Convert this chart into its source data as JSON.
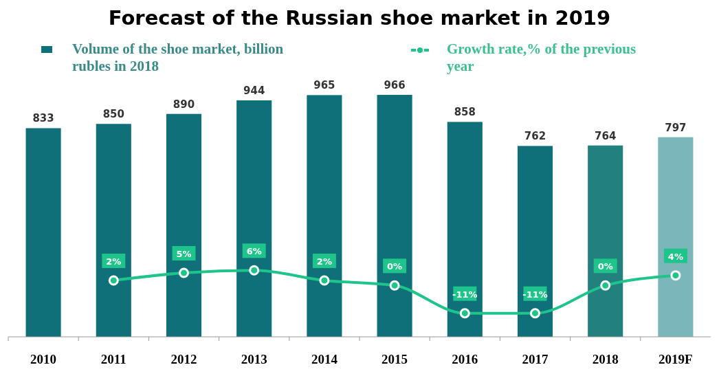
{
  "chart_data": {
    "type": "bar",
    "title": "Forecast of the Russian shoe market in 2019",
    "categories": [
      "2010",
      "2011",
      "2012",
      "2013",
      "2014",
      "2015",
      "2016",
      "2017",
      "2018",
      "2019F"
    ],
    "series": [
      {
        "name": "Volume of the shoe market, billion rubles in 2018",
        "color": "#107079",
        "colors": [
          "#107079",
          "#107079",
          "#107079",
          "#107079",
          "#107079",
          "#107079",
          "#107079",
          "#107079",
          "#22807f",
          "#7bb7ba"
        ],
        "values": [
          833,
          850,
          890,
          944,
          965,
          966,
          858,
          762,
          764,
          797
        ]
      },
      {
        "name": "Growth rate,% of the previous year",
        "type": "line",
        "axis": "y2",
        "color": "#1fc48a",
        "values": [
          null,
          2,
          5,
          6,
          2,
          0,
          -11,
          -11,
          0,
          4
        ],
        "value_labels": [
          null,
          "2%",
          "5%",
          "6%",
          "2%",
          "0%",
          "-11%",
          "-11%",
          "0%",
          "4%"
        ]
      }
    ],
    "data_labels": true,
    "tick_labels": "x",
    "legend": "top",
    "marker": "circle"
  }
}
